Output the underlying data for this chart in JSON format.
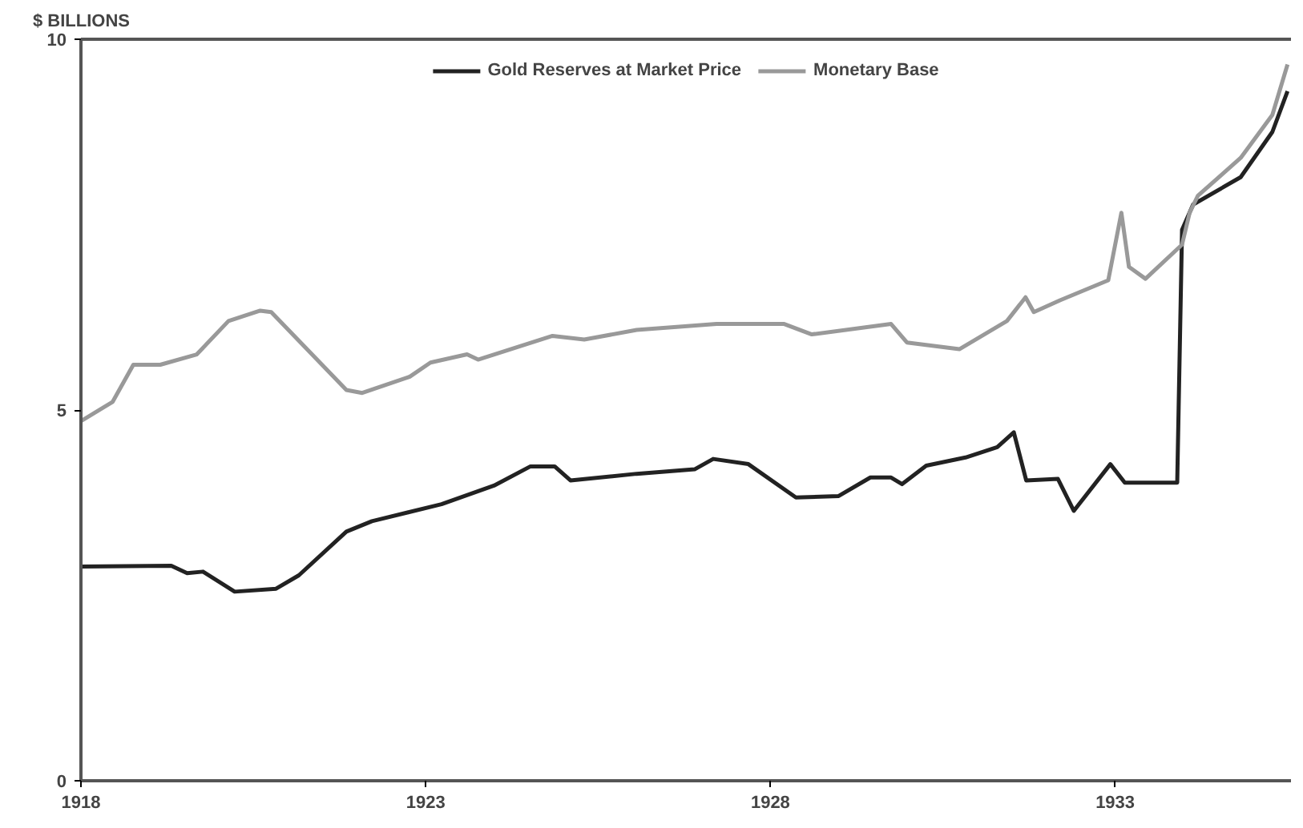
{
  "chart_data": {
    "type": "line",
    "ylabel": "$ BILLIONS",
    "xlim": [
      1918,
      1935.55
    ],
    "xticks": [
      1918,
      1923,
      1928,
      1933
    ],
    "ylim": [
      0,
      10
    ],
    "yticks": [
      0,
      5,
      10
    ],
    "grid": false,
    "legend": "top",
    "line_style": "solid",
    "marker": "none",
    "series": [
      {
        "name": "Gold Reserves at Market Price",
        "color": "#222222",
        "x": [
          1918,
          1919.31,
          1919.54,
          1919.77,
          1920.23,
          1920.83,
          1921.16,
          1921.85,
          1922.22,
          1923.23,
          1923.99,
          1924.52,
          1924.87,
          1925.1,
          1926.06,
          1926.9,
          1927.17,
          1927.68,
          1928.37,
          1928.99,
          1929.45,
          1929.75,
          1929.91,
          1930.26,
          1930.83,
          1931.29,
          1931.53,
          1931.71,
          1932.17,
          1932.4,
          1932.93,
          1933.14,
          1933.9,
          1933.97,
          1934.13,
          1934.82,
          1935.28,
          1935.5
        ],
        "values": [
          2.89,
          2.9,
          2.8,
          2.82,
          2.55,
          2.59,
          2.77,
          3.36,
          3.5,
          3.73,
          3.98,
          4.24,
          4.24,
          4.05,
          4.14,
          4.2,
          4.34,
          4.27,
          3.82,
          3.84,
          4.09,
          4.09,
          4.0,
          4.25,
          4.36,
          4.5,
          4.7,
          4.05,
          4.07,
          3.64,
          4.27,
          4.02,
          4.02,
          7.43,
          7.77,
          8.14,
          8.75,
          9.3
        ]
      },
      {
        "name": "Monetary Base",
        "color": "#999999",
        "x": [
          1918,
          1918.46,
          1918.76,
          1919.15,
          1919.68,
          1920.14,
          1920.6,
          1920.76,
          1921.85,
          1922.08,
          1922.77,
          1923.07,
          1923.6,
          1923.76,
          1924.84,
          1925.3,
          1926.06,
          1927.22,
          1928.2,
          1928.6,
          1929.75,
          1929.98,
          1930.74,
          1931.43,
          1931.7,
          1931.82,
          1932.2,
          1932.9,
          1933.09,
          1933.2,
          1933.44,
          1933.97,
          1934.08,
          1934.2,
          1934.82,
          1935.28,
          1935.5
        ],
        "values": [
          4.85,
          5.11,
          5.61,
          5.61,
          5.75,
          6.2,
          6.34,
          6.32,
          5.27,
          5.23,
          5.45,
          5.64,
          5.75,
          5.68,
          6.0,
          5.95,
          6.08,
          6.16,
          6.16,
          6.02,
          6.16,
          5.91,
          5.82,
          6.2,
          6.52,
          6.32,
          6.48,
          6.75,
          7.66,
          6.93,
          6.77,
          7.23,
          7.66,
          7.89,
          8.4,
          8.98,
          9.66
        ]
      }
    ]
  }
}
